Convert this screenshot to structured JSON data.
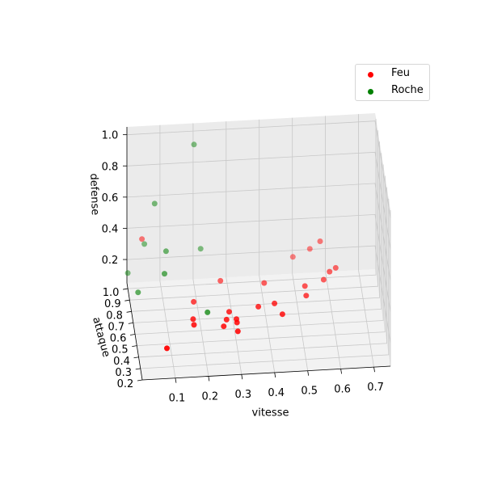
{
  "chart_data": {
    "type": "scatter3d",
    "xlabel": "vitesse",
    "ylabel": "attaque",
    "zlabel": "defense",
    "xlim": [
      0.0,
      0.75
    ],
    "ylim": [
      0.2,
      1.05
    ],
    "zlim": [
      0.05,
      1.05
    ],
    "xticks": [
      "0.1",
      "0.2",
      "0.3",
      "0.4",
      "0.5",
      "0.6",
      "0.7"
    ],
    "yticks": [
      "0.2",
      "0.3",
      "0.4",
      "0.5",
      "0.6",
      "0.7",
      "0.8",
      "0.9",
      "1.0"
    ],
    "zticks": [
      "0.2",
      "0.4",
      "0.6",
      "0.8",
      "1.0"
    ],
    "grid": true,
    "legend_position": "top-right",
    "series": [
      {
        "name": "Feu",
        "color": "#ff0000",
        "points": [
          {
            "x": 0.08,
            "y": 0.3,
            "z": 0.17
          },
          {
            "x": 0.04,
            "y": 0.95,
            "z": 0.4
          },
          {
            "x": 0.17,
            "y": 0.45,
            "z": 0.2
          },
          {
            "x": 0.17,
            "y": 0.5,
            "z": 0.2
          },
          {
            "x": 0.18,
            "y": 0.65,
            "z": 0.2
          },
          {
            "x": 0.26,
            "y": 0.45,
            "z": 0.18
          },
          {
            "x": 0.27,
            "y": 0.48,
            "z": 0.2
          },
          {
            "x": 0.28,
            "y": 0.52,
            "z": 0.22
          },
          {
            "x": 0.3,
            "y": 0.45,
            "z": 0.2
          },
          {
            "x": 0.3,
            "y": 0.48,
            "z": 0.2
          },
          {
            "x": 0.3,
            "y": 0.4,
            "z": 0.18
          },
          {
            "x": 0.27,
            "y": 0.82,
            "z": 0.2
          },
          {
            "x": 0.37,
            "y": 0.55,
            "z": 0.22
          },
          {
            "x": 0.42,
            "y": 0.57,
            "z": 0.22
          },
          {
            "x": 0.44,
            "y": 0.5,
            "z": 0.2
          },
          {
            "x": 0.4,
            "y": 0.78,
            "z": 0.2
          },
          {
            "x": 0.52,
            "y": 0.65,
            "z": 0.2
          },
          {
            "x": 0.52,
            "y": 0.72,
            "z": 0.21
          },
          {
            "x": 0.58,
            "y": 0.78,
            "z": 0.2
          },
          {
            "x": 0.6,
            "y": 0.82,
            "z": 0.22
          },
          {
            "x": 0.62,
            "y": 0.85,
            "z": 0.22
          },
          {
            "x": 0.55,
            "y": 1.0,
            "z": 0.24
          },
          {
            "x": 0.58,
            "y": 0.98,
            "z": 0.3
          },
          {
            "x": 0.5,
            "y": 1.02,
            "z": 0.18
          }
        ]
      },
      {
        "name": "Roche",
        "color": "#008000",
        "points": [
          {
            "x": 0.02,
            "y": 0.8,
            "z": 0.17
          },
          {
            "x": 0.0,
            "y": 1.0,
            "z": 0.15
          },
          {
            "x": 0.1,
            "y": 0.8,
            "z": 0.28
          },
          {
            "x": 0.05,
            "y": 1.0,
            "z": 0.33
          },
          {
            "x": 0.11,
            "y": 0.9,
            "z": 0.35
          },
          {
            "x": 0.08,
            "y": 0.98,
            "z": 0.6
          },
          {
            "x": 0.2,
            "y": 1.0,
            "z": 0.95
          },
          {
            "x": 0.22,
            "y": 1.0,
            "z": 0.28
          },
          {
            "x": 0.22,
            "y": 0.62,
            "z": 0.15
          }
        ]
      }
    ]
  }
}
